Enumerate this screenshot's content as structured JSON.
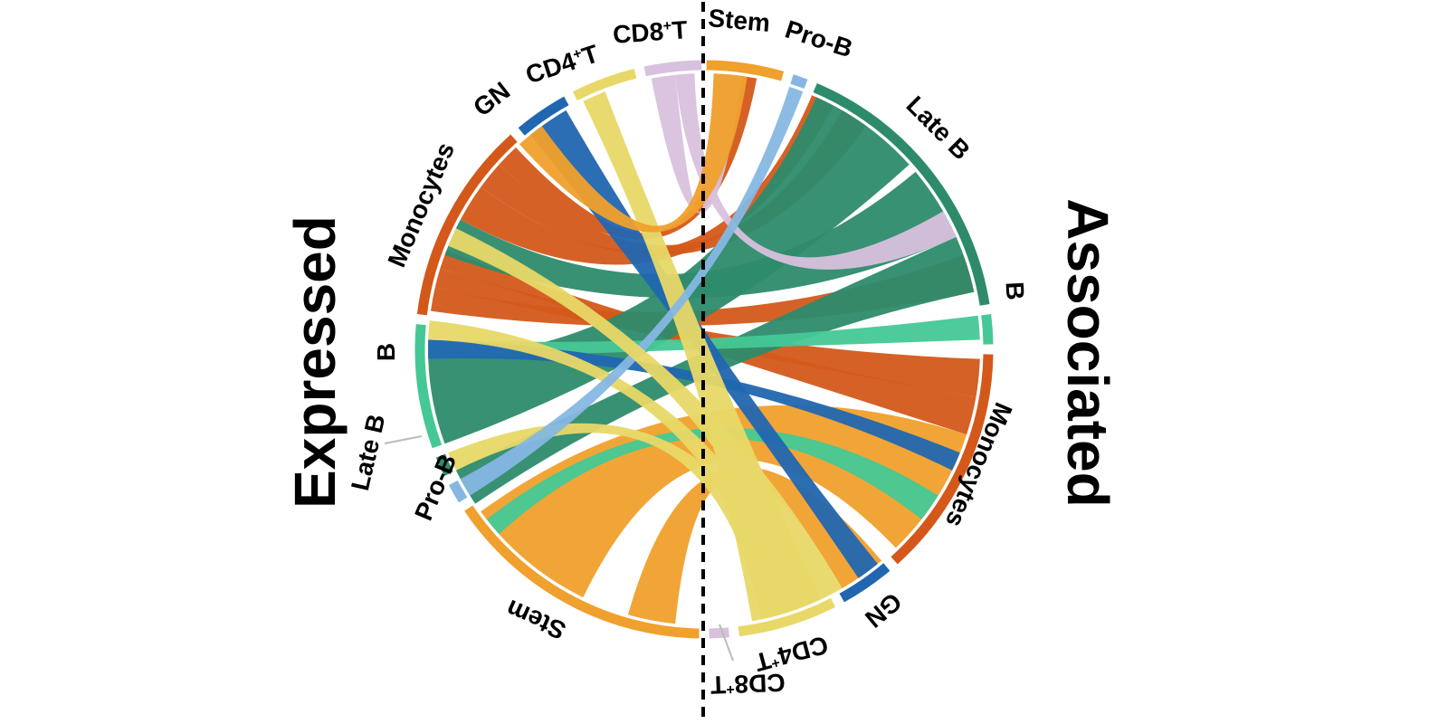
{
  "titles": {
    "left": "Expressed",
    "right": "Associated"
  },
  "colors": {
    "Monocytes": "#d4581a",
    "GN": "#2166b0",
    "CD4T": "#e8d867",
    "CD8T": "#d8c1de",
    "Stem": "#f0a02c",
    "ProB": "#86b7e3",
    "LateB": "#2d8b6b",
    "B": "#45c895",
    "divider": "#000000"
  },
  "labels": {
    "expressed": {
      "Monocytes": "Monocytes",
      "GN": "GN",
      "CD4T": "CD4",
      "CD4T_sup": "+",
      "CD4T_suffix": "T",
      "CD8T": "CD8",
      "CD8T_sup": "+",
      "CD8T_suffix": "T",
      "B": "B",
      "LateB": "Late B",
      "ProB": "Pro-B",
      "Stem": "Stem"
    },
    "associated": {
      "Stem": "Stem",
      "ProB": "Pro-B",
      "LateB": "Late B",
      "B": "B",
      "Monocytes": "Monocytes",
      "GN": "GN",
      "CD4T": "CD4",
      "CD4T_sup": "+",
      "CD4T_suffix": "T",
      "CD8T": "CD8",
      "CD8T_sup": "+",
      "CD8T_suffix": "T"
    }
  },
  "chart_data": {
    "type": "chord",
    "left_group": "Expressed",
    "right_group": "Associated",
    "expressed_sectors": [
      "Stem",
      "Pro-B",
      "Late B",
      "B",
      "Monocytes",
      "GN",
      "CD4+T",
      "CD8+T"
    ],
    "associated_sectors": [
      "Stem",
      "Pro-B",
      "Late B",
      "B",
      "Monocytes",
      "GN",
      "CD4+T",
      "CD8+T"
    ],
    "links": [
      {
        "from": "Late B",
        "to": "Late B",
        "value": 18
      },
      {
        "from": "Late B",
        "to": "Monocytes",
        "value": 20
      },
      {
        "from": "Stem",
        "to": "Monocytes",
        "value": 28
      },
      {
        "from": "Stem",
        "to": "GN",
        "value": 6
      },
      {
        "from": "Stem",
        "to": "CD4+T",
        "value": 2
      },
      {
        "from": "Stem",
        "to": "CD8+T",
        "value": 1
      },
      {
        "from": "Stem",
        "to": "Monocytes",
        "value": 4
      },
      {
        "from": "B",
        "to": "Late B",
        "value": 18
      },
      {
        "from": "B",
        "to": "Monocytes",
        "value": 6
      },
      {
        "from": "B",
        "to": "B",
        "value": 1
      },
      {
        "from": "B",
        "to": "Monocytes",
        "value": 3
      },
      {
        "from": "B",
        "to": "Monocytes",
        "value": 2
      },
      {
        "from": "B",
        "to": "CD4+T",
        "value": 2
      },
      {
        "from": "B",
        "to": "GN",
        "value": 2
      },
      {
        "from": "Monocytes",
        "to": "Late B",
        "value": 26
      },
      {
        "from": "Monocytes",
        "to": "Stem",
        "value": 3
      },
      {
        "from": "Monocytes",
        "to": "B",
        "value": 2
      },
      {
        "from": "Monocytes",
        "to": "CD4+T",
        "value": 3
      },
      {
        "from": "Monocytes",
        "to": "Monocytes",
        "value": 2
      },
      {
        "from": "GN",
        "to": "Late B",
        "value": 2
      },
      {
        "from": "GN",
        "to": "Stem",
        "value": 3
      },
      {
        "from": "GN",
        "to": "Monocytes",
        "value": 2
      },
      {
        "from": "CD4+T",
        "to": "Stem",
        "value": 3
      },
      {
        "from": "CD4+T",
        "to": "Monocytes",
        "value": 3
      },
      {
        "from": "CD4+T",
        "to": "CD4+T",
        "value": 2
      },
      {
        "from": "CD8+T",
        "to": "Stem",
        "value": 2
      },
      {
        "from": "CD8+T",
        "to": "Late B",
        "value": 2
      },
      {
        "from": "CD8+T",
        "to": "Monocytes",
        "value": 2
      },
      {
        "from": "Pro-B",
        "to": "Monocytes",
        "value": 1
      },
      {
        "from": "Pro-B",
        "to": "Stem",
        "value": 1
      },
      {
        "from": "Late B",
        "to": "B",
        "value": 1
      },
      {
        "from": "B",
        "to": "Stem",
        "value": 1
      },
      {
        "from": "Stem",
        "to": "Pro-B",
        "value": 1
      },
      {
        "from": "Late B",
        "to": "GN",
        "value": 1
      }
    ]
  }
}
